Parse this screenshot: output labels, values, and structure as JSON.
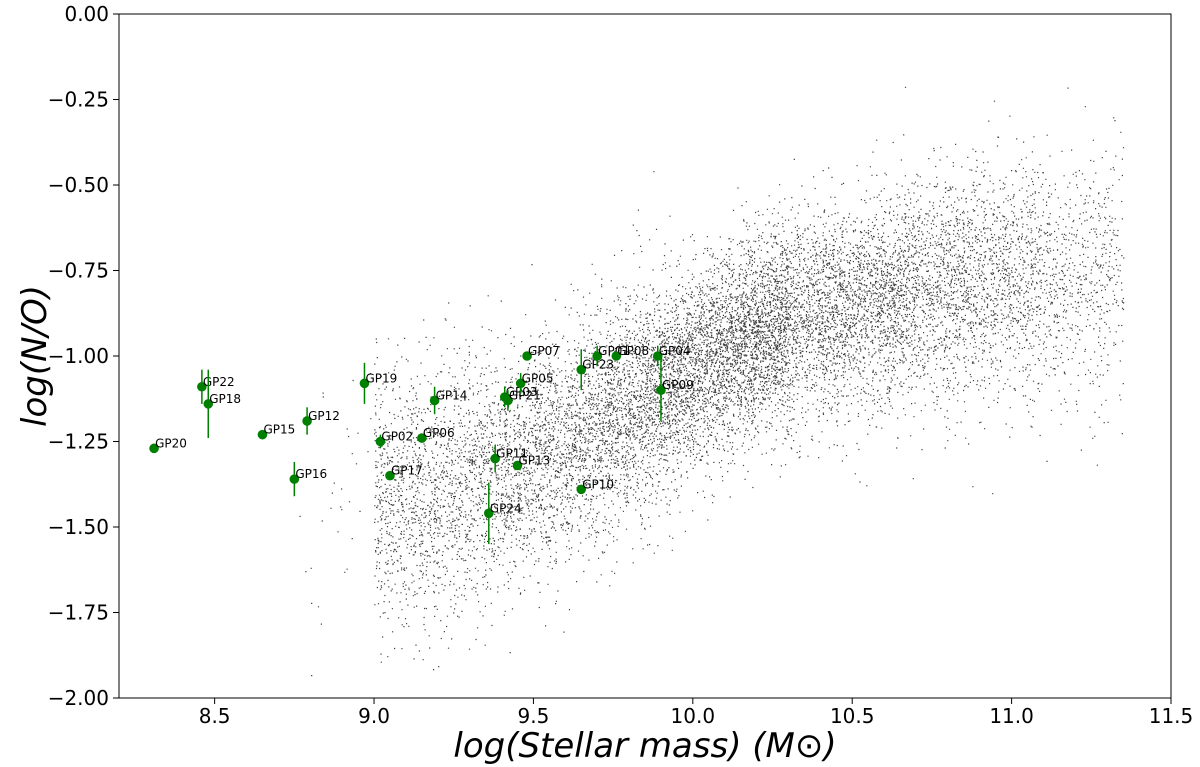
{
  "chart_data": {
    "type": "scatter",
    "xlabel": "log(Stellar mass) (M⊙)",
    "ylabel": "log(N/O)",
    "xlim": [
      8.2,
      11.5
    ],
    "ylim": [
      -2.0,
      0.0
    ],
    "x_ticks": [
      8.5,
      9.0,
      9.5,
      10.0,
      10.5,
      11.0,
      11.5
    ],
    "x_tick_labels": [
      "8.5",
      "9.0",
      "9.5",
      "10.0",
      "10.5",
      "11.0",
      "11.5"
    ],
    "y_ticks": [
      0.0,
      -0.25,
      -0.5,
      -0.75,
      -1.0,
      -1.25,
      -1.5,
      -1.75,
      -2.0
    ],
    "y_tick_labels": [
      "0.00",
      "−0.25",
      "−0.50",
      "−0.75",
      "−1.00",
      "−1.25",
      "−1.50",
      "−1.75",
      "−2.00"
    ],
    "grid": false,
    "background_cloud": {
      "marker_color": "#000000",
      "description_trend": "dense cloud of small black dots"
    },
    "points_color": "#008000",
    "points": [
      {
        "label": "GP20",
        "x": 8.31,
        "y": -1.27,
        "err": 0.0
      },
      {
        "label": "GP22",
        "x": 8.46,
        "y": -1.09,
        "err": 0.05
      },
      {
        "label": "GP18",
        "x": 8.48,
        "y": -1.14,
        "err": 0.1
      },
      {
        "label": "GP15",
        "x": 8.65,
        "y": -1.23,
        "err": 0.0
      },
      {
        "label": "GP12",
        "x": 8.79,
        "y": -1.19,
        "err": 0.04
      },
      {
        "label": "GP16",
        "x": 8.75,
        "y": -1.36,
        "err": 0.05
      },
      {
        "label": "GP19",
        "x": 8.97,
        "y": -1.08,
        "err": 0.06
      },
      {
        "label": "GP02",
        "x": 9.02,
        "y": -1.25,
        "err": 0.02
      },
      {
        "label": "GP17",
        "x": 9.05,
        "y": -1.35,
        "err": 0.0
      },
      {
        "label": "GP06",
        "x": 9.15,
        "y": -1.24,
        "err": 0.0
      },
      {
        "label": "GP14",
        "x": 9.19,
        "y": -1.13,
        "err": 0.04
      },
      {
        "label": "GP11",
        "x": 9.38,
        "y": -1.3,
        "err": 0.04
      },
      {
        "label": "GP13",
        "x": 9.45,
        "y": -1.32,
        "err": 0.0
      },
      {
        "label": "GP24",
        "x": 9.36,
        "y": -1.46,
        "err": 0.09
      },
      {
        "label": "GP03",
        "x": 9.41,
        "y": -1.12,
        "err": 0.03
      },
      {
        "label": "GP21",
        "x": 9.42,
        "y": -1.13,
        "err": 0.03
      },
      {
        "label": "GP05",
        "x": 9.46,
        "y": -1.08,
        "err": 0.03
      },
      {
        "label": "GP07",
        "x": 9.48,
        "y": -1.0,
        "err": 0.0
      },
      {
        "label": "GP10",
        "x": 9.65,
        "y": -1.39,
        "err": 0.0
      },
      {
        "label": "GP23",
        "x": 9.65,
        "y": -1.04,
        "err": 0.06
      },
      {
        "label": "GP01",
        "x": 9.7,
        "y": -1.0,
        "err": 0.03
      },
      {
        "label": "GP08",
        "x": 9.76,
        "y": -1.0,
        "err": 0.0
      },
      {
        "label": "GP04",
        "x": 9.89,
        "y": -1.0,
        "err": 0.03
      },
      {
        "label": "GP09",
        "x": 9.9,
        "y": -1.1,
        "err": 0.09
      }
    ]
  }
}
